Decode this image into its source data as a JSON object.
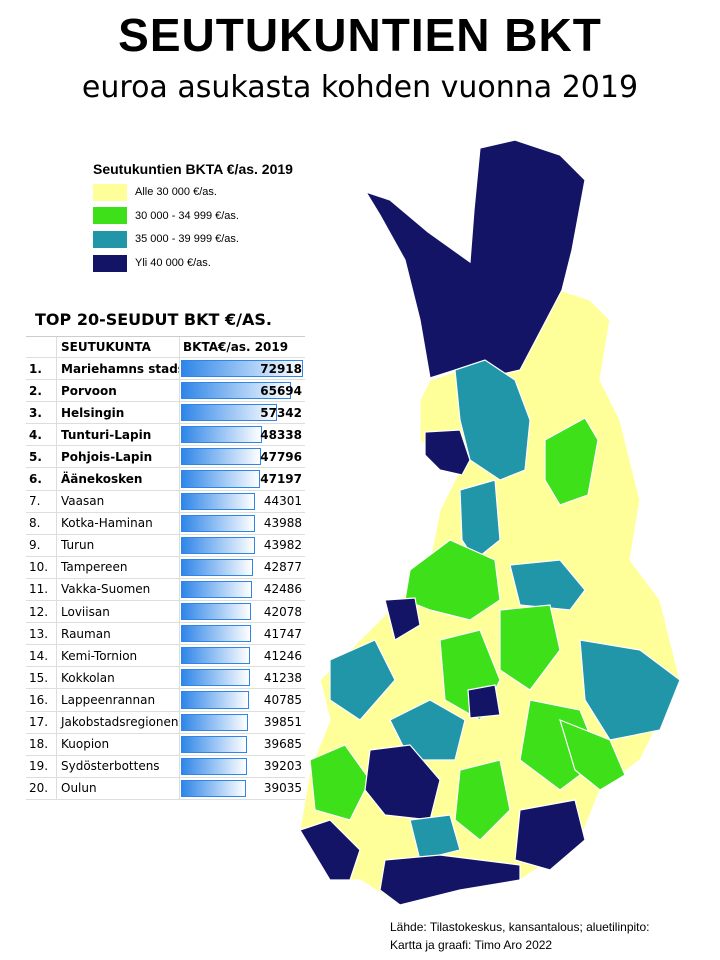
{
  "title": "SEUTUKUNTIEN BKT",
  "subtitle": "euroa asukasta kohden vuonna 2019",
  "legend": {
    "title": "Seutukuntien BKTA €/as. 2019",
    "items": [
      {
        "label": "Alle 30 000 €/as.",
        "color": "#ffff99"
      },
      {
        "label": "30 000 - 34 999 €/as.",
        "color": "#3ee01a"
      },
      {
        "label": "35 000 - 39 999 €/as.",
        "color": "#2196a8"
      },
      {
        "label": "Yli 40 000 €/as.",
        "color": "#141466"
      }
    ]
  },
  "table": {
    "title": "TOP 20-SEUDUT BKT €/AS.",
    "header": [
      "SEUTUKUNTA",
      "BKTA€/as. 2019"
    ],
    "rows": [
      [
        "1.",
        "Mariehamns stads",
        72918
      ],
      [
        "2.",
        "Porvoon",
        65694
      ],
      [
        "3.",
        "Helsingin",
        57342
      ],
      [
        "4.",
        "Tunturi-Lapin",
        48338
      ],
      [
        "5.",
        "Pohjois-Lapin",
        47796
      ],
      [
        "6.",
        "Äänekosken",
        47197
      ],
      [
        "7.",
        "Vaasan",
        44301
      ],
      [
        "8.",
        "Kotka-Haminan",
        43988
      ],
      [
        "9.",
        "Turun",
        43982
      ],
      [
        "10.",
        "Tampereen",
        42877
      ],
      [
        "11.",
        "Vakka-Suomen",
        42486
      ],
      [
        "12.",
        "Loviisan",
        42078
      ],
      [
        "13.",
        "Rauman",
        41747
      ],
      [
        "14.",
        "Kemi-Tornion",
        41246
      ],
      [
        "15.",
        "Kokkolan",
        41238
      ],
      [
        "16.",
        "Lappeenrannan",
        40785
      ],
      [
        "17.",
        "Jakobstadsregionen",
        39851
      ],
      [
        "18.",
        "Kuopion",
        39685
      ],
      [
        "19.",
        "Sydösterbottens",
        39203
      ],
      [
        "20.",
        "Oulun",
        39035
      ]
    ]
  },
  "source": [
    "Lähde: Tilastokeskus, kansantalous; aluetilinpito:",
    "Kartta ja graafi: Timo Aro 2022"
  ]
}
